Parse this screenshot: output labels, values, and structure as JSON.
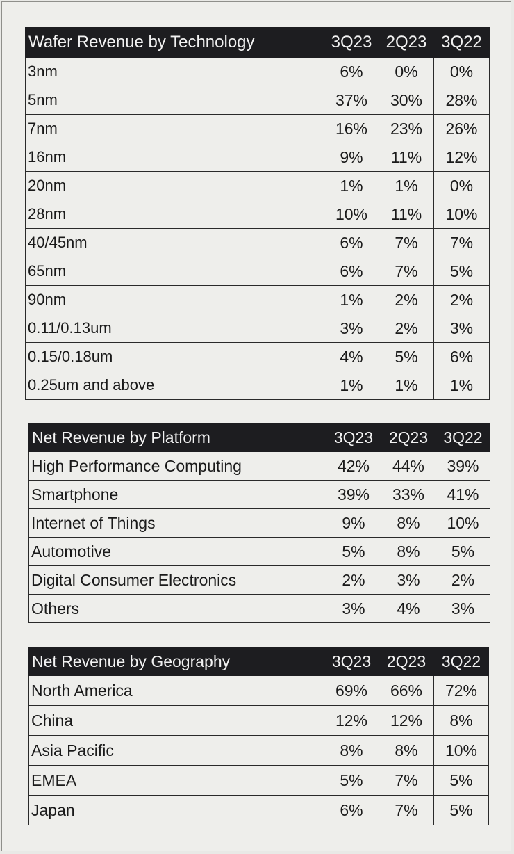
{
  "technology": {
    "title": "Wafer Revenue by Technology",
    "quarters": [
      "3Q23",
      "2Q23",
      "3Q22"
    ],
    "rows": [
      {
        "label": "3nm",
        "values": [
          "6%",
          "0%",
          "0%"
        ]
      },
      {
        "label": "5nm",
        "values": [
          "37%",
          "30%",
          "28%"
        ]
      },
      {
        "label": "7nm",
        "values": [
          "16%",
          "23%",
          "26%"
        ]
      },
      {
        "label": "16nm",
        "values": [
          "9%",
          "11%",
          "12%"
        ]
      },
      {
        "label": "20nm",
        "values": [
          "1%",
          "1%",
          "0%"
        ]
      },
      {
        "label": "28nm",
        "values": [
          "10%",
          "11%",
          "10%"
        ]
      },
      {
        "label": "40/45nm",
        "values": [
          "6%",
          "7%",
          "7%"
        ]
      },
      {
        "label": "65nm",
        "values": [
          "6%",
          "7%",
          "5%"
        ]
      },
      {
        "label": "90nm",
        "values": [
          "1%",
          "2%",
          "2%"
        ]
      },
      {
        "label": "0.11/0.13um",
        "values": [
          "3%",
          "2%",
          "3%"
        ]
      },
      {
        "label": "0.15/0.18um",
        "values": [
          "4%",
          "5%",
          "6%"
        ]
      },
      {
        "label": "0.25um and above",
        "values": [
          "1%",
          "1%",
          "1%"
        ]
      }
    ]
  },
  "platform": {
    "title": "Net Revenue by Platform",
    "quarters": [
      "3Q23",
      "2Q23",
      "3Q22"
    ],
    "rows": [
      {
        "label": "High Performance Computing",
        "values": [
          "42%",
          "44%",
          "39%"
        ]
      },
      {
        "label": "Smartphone",
        "values": [
          "39%",
          "33%",
          "41%"
        ]
      },
      {
        "label": "Internet of Things",
        "values": [
          "9%",
          "8%",
          "10%"
        ]
      },
      {
        "label": "Automotive",
        "values": [
          "5%",
          "8%",
          "5%"
        ]
      },
      {
        "label": "Digital Consumer Electronics",
        "values": [
          "2%",
          "3%",
          "2%"
        ]
      },
      {
        "label": "Others",
        "values": [
          "3%",
          "4%",
          "3%"
        ]
      }
    ]
  },
  "geography": {
    "title": "Net Revenue by Geography",
    "quarters": [
      "3Q23",
      "2Q23",
      "3Q22"
    ],
    "rows": [
      {
        "label": "North America",
        "values": [
          "69%",
          "66%",
          "72%"
        ]
      },
      {
        "label": "China",
        "values": [
          "12%",
          "12%",
          "8%"
        ]
      },
      {
        "label": "Asia Pacific",
        "values": [
          "8%",
          "8%",
          "10%"
        ]
      },
      {
        "label": "EMEA",
        "values": [
          "5%",
          "7%",
          "5%"
        ]
      },
      {
        "label": "Japan",
        "values": [
          "6%",
          "7%",
          "5%"
        ]
      }
    ]
  }
}
